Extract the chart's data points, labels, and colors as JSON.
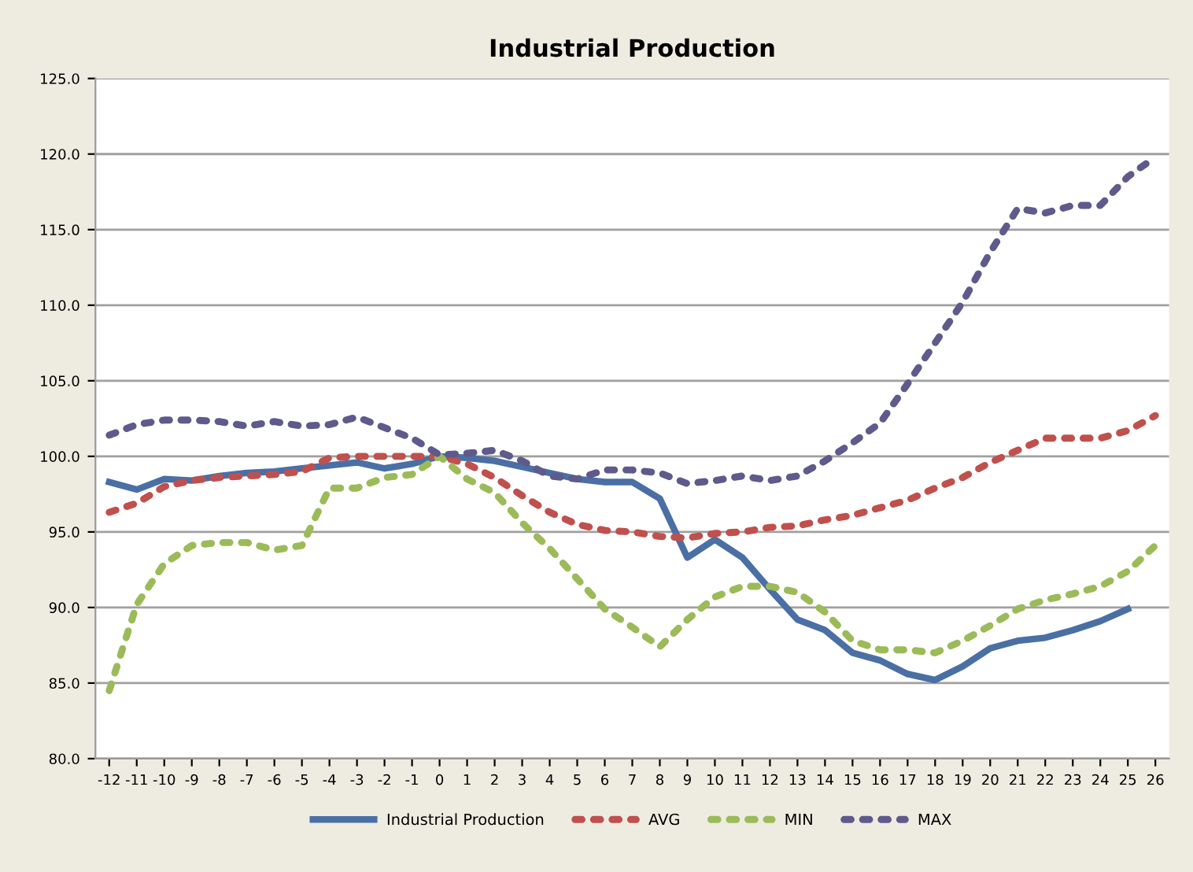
{
  "chart_data": {
    "type": "line",
    "title": "Industrial Production",
    "categories": [
      "-12",
      "-11",
      "-10",
      "-9",
      "-8",
      "-7",
      "-6",
      "-5",
      "-4",
      "-3",
      "-2",
      "-1",
      "0",
      "1",
      "2",
      "3",
      "4",
      "5",
      "6",
      "7",
      "8",
      "9",
      "10",
      "11",
      "12",
      "13",
      "14",
      "15",
      "16",
      "17",
      "18",
      "19",
      "20",
      "21",
      "22",
      "23",
      "24",
      "25",
      "26"
    ],
    "series": [
      {
        "name": "Industrial Production",
        "color": "#4a6fa5",
        "line_style": "solid",
        "values": [
          98.3,
          97.8,
          98.5,
          98.4,
          98.7,
          98.9,
          99.0,
          99.2,
          99.4,
          99.6,
          99.2,
          99.5,
          100.0,
          99.9,
          99.7,
          99.3,
          98.9,
          98.5,
          98.3,
          98.3,
          97.2,
          93.3,
          94.5,
          93.3,
          91.2,
          89.2,
          88.5,
          87.0,
          86.5,
          85.6,
          85.2,
          86.1,
          87.3,
          87.8,
          88.0,
          88.5,
          89.1,
          89.9,
          null
        ]
      },
      {
        "name": "AVG",
        "color": "#c0504d",
        "line_style": "dotted",
        "values": [
          96.3,
          96.9,
          98.0,
          98.4,
          98.6,
          98.7,
          98.8,
          99.0,
          99.9,
          100.0,
          100.0,
          100.0,
          100.0,
          99.5,
          98.6,
          97.4,
          96.3,
          95.5,
          95.1,
          95.0,
          94.7,
          94.6,
          94.9,
          95.0,
          95.3,
          95.4,
          95.8,
          96.1,
          96.6,
          97.1,
          97.9,
          98.6,
          99.6,
          100.4,
          101.2,
          101.2,
          101.2,
          101.7,
          102.7
        ]
      },
      {
        "name": "MIN",
        "color": "#9bbb59",
        "line_style": "dotted",
        "values": [
          84.5,
          90.2,
          92.9,
          94.1,
          94.3,
          94.3,
          93.8,
          94.1,
          97.9,
          97.9,
          98.6,
          98.8,
          100.0,
          98.5,
          97.6,
          95.6,
          93.9,
          91.9,
          89.9,
          88.7,
          87.4,
          89.2,
          90.7,
          91.4,
          91.4,
          91.0,
          89.7,
          87.8,
          87.2,
          87.2,
          87.0,
          87.8,
          88.8,
          89.9,
          90.5,
          90.9,
          91.4,
          92.4,
          94.1
        ]
      },
      {
        "name": "MAX",
        "color": "#5f5a8c",
        "line_style": "dotted",
        "values": [
          101.4,
          102.1,
          102.4,
          102.4,
          102.3,
          102.0,
          102.3,
          102.0,
          102.1,
          102.6,
          101.9,
          101.2,
          100.1,
          100.2,
          100.4,
          99.7,
          98.7,
          98.5,
          99.1,
          99.1,
          98.9,
          98.2,
          98.4,
          98.7,
          98.4,
          98.7,
          99.7,
          100.9,
          102.2,
          104.8,
          107.5,
          110.2,
          113.5,
          116.4,
          116.1,
          116.6,
          116.6,
          118.5,
          119.8
        ]
      }
    ],
    "ylim": [
      80,
      125
    ],
    "yticks": [
      {
        "value": 80,
        "label": "80.0"
      },
      {
        "value": 85,
        "label": "85.0"
      },
      {
        "value": 90,
        "label": "90.0"
      },
      {
        "value": 95,
        "label": "95.0"
      },
      {
        "value": 100,
        "label": "100.0"
      },
      {
        "value": 105,
        "label": "105.0"
      },
      {
        "value": 110,
        "label": "110.0"
      },
      {
        "value": 115,
        "label": "115.0"
      },
      {
        "value": 120,
        "label": "120.0"
      },
      {
        "value": 125,
        "label": "125.0"
      }
    ],
    "grid": "y",
    "legend": "bottom",
    "marker": "none"
  }
}
